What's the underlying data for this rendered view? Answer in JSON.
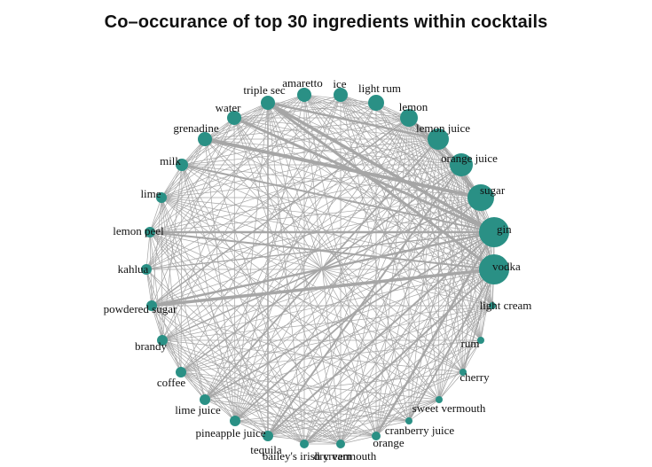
{
  "title": "Co–occurance of top 30 ingredients within cocktails",
  "node_color": "#2a9085",
  "edge_color": "#a6a6a6",
  "nodes": [
    {
      "name": "vodka",
      "size": 10
    },
    {
      "name": "gin",
      "size": 9
    },
    {
      "name": "sugar",
      "size": 8
    },
    {
      "name": "orange juice",
      "size": 7
    },
    {
      "name": "lemon juice",
      "size": 6
    },
    {
      "name": "lemon",
      "size": 5
    },
    {
      "name": "light rum",
      "size": 4
    },
    {
      "name": "ice",
      "size": 4
    },
    {
      "name": "amaretto",
      "size": 4
    },
    {
      "name": "triple sec",
      "size": 4
    },
    {
      "name": "water",
      "size": 4
    },
    {
      "name": "grenadine",
      "size": 4
    },
    {
      "name": "milk",
      "size": 3
    },
    {
      "name": "lime",
      "size": 3
    },
    {
      "name": "lemon peel",
      "size": 3
    },
    {
      "name": "kahlua",
      "size": 3
    },
    {
      "name": "powdered sugar",
      "size": 3
    },
    {
      "name": "brandy",
      "size": 3
    },
    {
      "name": "coffee",
      "size": 3
    },
    {
      "name": "lime juice",
      "size": 3
    },
    {
      "name": "pineapple juice",
      "size": 3
    },
    {
      "name": "tequila",
      "size": 3
    },
    {
      "name": "bailey's irish cream",
      "size": 3
    },
    {
      "name": "dry vermouth",
      "size": 3
    },
    {
      "name": "orange",
      "size": 3
    },
    {
      "name": "cranberry juice",
      "size": 2
    },
    {
      "name": "sweet vermouth",
      "size": 2
    },
    {
      "name": "cherry",
      "size": 2
    },
    {
      "name": "rum",
      "size": 2
    },
    {
      "name": "light cream",
      "size": 2
    }
  ]
}
